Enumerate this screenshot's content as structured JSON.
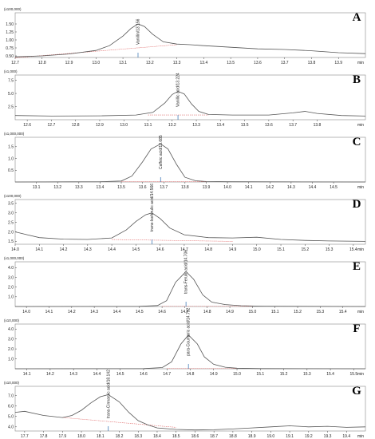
{
  "figure": {
    "unit": "min",
    "colors": {
      "trace": "#555555",
      "baseline": "#e06a6a",
      "frame": "#888888",
      "peak_marker": "#2b6cb0"
    }
  },
  "chart_data": [
    {
      "type": "line",
      "letter": "A",
      "scale": "(x100,000)",
      "xlim": [
        12.7,
        14.0
      ],
      "xticks": [
        12.7,
        12.8,
        12.9,
        13.0,
        13.1,
        13.2,
        13.3,
        13.4,
        13.5,
        13.6,
        13.7,
        13.8,
        13.9
      ],
      "ylim": [
        0.45,
        1.85
      ],
      "yticks": [
        0.5,
        0.75,
        1.0,
        1.25,
        1.5
      ],
      "peak_label": "Vanillin/13.156",
      "peak_x": 13.156,
      "trace": {
        "x": [
          12.7,
          12.8,
          12.9,
          13.0,
          13.05,
          13.1,
          13.13,
          13.156,
          13.18,
          13.21,
          13.25,
          13.3,
          13.35,
          13.4,
          13.5,
          13.6,
          13.7,
          13.8,
          13.9,
          14.0
        ],
        "y": [
          0.47,
          0.5,
          0.56,
          0.67,
          0.82,
          1.12,
          1.36,
          1.5,
          1.42,
          1.18,
          0.94,
          0.87,
          0.85,
          0.82,
          0.77,
          0.72,
          0.7,
          0.66,
          0.6,
          0.57
        ]
      },
      "baseline": {
        "x": [
          12.7,
          13.3
        ],
        "y": [
          0.44,
          0.85
        ]
      }
    },
    {
      "type": "line",
      "letter": "B",
      "scale": "(x1,000)",
      "xlim": [
        12.55,
        14.0
      ],
      "xticks": [
        12.6,
        12.7,
        12.8,
        12.9,
        13.0,
        13.1,
        13.2,
        13.3,
        13.4,
        13.5,
        13.6,
        13.7,
        13.8
      ],
      "ylim": [
        0,
        8.5
      ],
      "yticks": [
        2.5,
        5.0,
        7.5
      ],
      "peak_label": "Vanillic acid/13.224",
      "peak_x": 13.224,
      "trace": {
        "x": [
          12.55,
          12.7,
          12.9,
          13.05,
          13.12,
          13.17,
          13.2,
          13.224,
          13.25,
          13.28,
          13.31,
          13.35,
          13.45,
          13.6,
          13.7,
          13.75,
          13.8,
          13.9,
          14.0
        ],
        "y": [
          0.8,
          0.7,
          0.75,
          0.9,
          1.4,
          3.2,
          4.8,
          5.4,
          4.9,
          3.0,
          1.6,
          1.0,
          0.9,
          0.9,
          1.3,
          1.6,
          1.2,
          0.8,
          0.7
        ]
      },
      "baseline": {
        "x": [
          13.1,
          13.35
        ],
        "y": [
          0.9,
          0.9
        ]
      }
    },
    {
      "type": "line",
      "letter": "C",
      "scale": "(x1,000,000)",
      "xlim": [
        13.0,
        14.65
      ],
      "xticks": [
        13.1,
        13.2,
        13.3,
        13.4,
        13.5,
        13.6,
        13.7,
        13.8,
        13.9,
        14.0,
        14.1,
        14.2,
        14.3,
        14.4,
        14.5
      ],
      "ylim": [
        0,
        1.9
      ],
      "yticks": [
        0.5,
        1.0,
        1.5
      ],
      "peak_label": "Caffeic acid/13.685",
      "peak_x": 13.685,
      "trace": {
        "x": [
          13.0,
          13.4,
          13.5,
          13.55,
          13.6,
          13.64,
          13.685,
          13.72,
          13.76,
          13.8,
          13.85,
          13.9,
          14.0,
          14.65
        ],
        "y": [
          0.0,
          0.01,
          0.04,
          0.25,
          0.85,
          1.4,
          1.62,
          1.4,
          0.75,
          0.2,
          0.05,
          0.02,
          0.01,
          0.0
        ]
      },
      "baseline": {
        "x": [
          13.5,
          13.9
        ],
        "y": [
          0.01,
          0.01
        ]
      }
    },
    {
      "type": "line",
      "letter": "D",
      "scale": "(x100,000)",
      "xlim": [
        14.0,
        15.45
      ],
      "xticks": [
        14.0,
        14.1,
        14.2,
        14.3,
        14.4,
        14.5,
        14.6,
        14.7,
        14.8,
        14.9,
        15.0,
        15.1,
        15.2,
        15.3,
        15.4
      ],
      "ylim": [
        1.35,
        3.7
      ],
      "yticks": [
        1.5,
        2.0,
        2.5,
        3.0,
        3.5
      ],
      "peak_label": "trans-Isoferulic acid/14.566",
      "peak_x": 14.566,
      "trace": {
        "x": [
          14.0,
          14.05,
          14.1,
          14.2,
          14.3,
          14.4,
          14.46,
          14.5,
          14.54,
          14.566,
          14.6,
          14.64,
          14.7,
          14.8,
          14.9,
          15.0,
          15.1,
          15.2,
          15.3,
          15.45
        ],
        "y": [
          2.0,
          1.85,
          1.7,
          1.62,
          1.6,
          1.68,
          2.1,
          2.55,
          2.9,
          3.0,
          2.7,
          2.2,
          1.85,
          1.7,
          1.68,
          1.72,
          1.6,
          1.55,
          1.52,
          1.5
        ]
      },
      "baseline": {
        "x": [
          14.4,
          14.9
        ],
        "y": [
          1.6,
          1.5
        ]
      }
    },
    {
      "type": "line",
      "letter": "E",
      "scale": "(x1,000,000)",
      "xlim": [
        13.95,
        15.5
      ],
      "xticks": [
        14.0,
        14.1,
        14.2,
        14.3,
        14.4,
        14.5,
        14.6,
        14.7,
        14.8,
        14.9,
        15.0,
        15.1,
        15.2,
        15.3,
        15.4
      ],
      "ylim": [
        0,
        4.6
      ],
      "yticks": [
        1.0,
        2.0,
        3.0,
        4.0
      ],
      "peak_label": "trans-Ferulic acid/14.706",
      "peak_x": 14.706,
      "trace": {
        "x": [
          13.95,
          14.5,
          14.58,
          14.62,
          14.66,
          14.706,
          14.74,
          14.78,
          14.82,
          14.88,
          14.95,
          15.05,
          15.5
        ],
        "y": [
          0.0,
          0.02,
          0.1,
          0.6,
          2.5,
          3.6,
          2.8,
          1.2,
          0.45,
          0.2,
          0.08,
          0.03,
          0.0
        ]
      },
      "baseline": {
        "x": [
          14.6,
          15.0
        ],
        "y": [
          0.02,
          0.02
        ]
      }
    },
    {
      "type": "line",
      "letter": "F",
      "scale": "(x10,000)",
      "xlim": [
        14.05,
        15.55
      ],
      "xticks": [
        14.1,
        14.2,
        14.3,
        14.4,
        14.5,
        14.6,
        14.7,
        14.8,
        14.9,
        15.0,
        15.1,
        15.2,
        15.3,
        15.4,
        15.5
      ],
      "ylim": [
        0,
        4.5
      ],
      "yticks": [
        1.0,
        2.0,
        3.0,
        4.0
      ],
      "peak_label": "para-Coumaric acid/14.792",
      "peak_x": 14.792,
      "trace": {
        "x": [
          14.05,
          14.6,
          14.68,
          14.72,
          14.76,
          14.792,
          14.83,
          14.86,
          14.9,
          14.95,
          15.0,
          15.1,
          15.55
        ],
        "y": [
          0.0,
          0.02,
          0.12,
          0.7,
          2.5,
          3.4,
          2.5,
          1.2,
          0.45,
          0.15,
          0.06,
          0.02,
          0.0
        ]
      },
      "baseline": {
        "x": [
          14.7,
          15.0
        ],
        "y": [
          0.02,
          0.02
        ]
      }
    },
    {
      "type": "line",
      "letter": "G",
      "scale": "(x10,000)",
      "xlim": [
        17.65,
        19.5
      ],
      "xticks": [
        17.7,
        17.8,
        17.9,
        18.0,
        18.1,
        18.2,
        18.3,
        18.4,
        18.5,
        18.6,
        18.7,
        18.8,
        18.9,
        19.0,
        19.1,
        19.2,
        19.3,
        19.4
      ],
      "ylim": [
        3.6,
        7.9
      ],
      "yticks": [
        4.0,
        5.0,
        6.0,
        7.0
      ],
      "peak_label": "trans-Cinnamic acid/18.142",
      "peak_x": 18.142,
      "trace": {
        "x": [
          17.65,
          17.7,
          17.8,
          17.9,
          17.95,
          18.0,
          18.05,
          18.1,
          18.142,
          18.2,
          18.25,
          18.3,
          18.35,
          18.4,
          18.5,
          18.6,
          18.7,
          18.8,
          18.9,
          19.0,
          19.1,
          19.2,
          19.3,
          19.4,
          19.5
        ],
        "y": [
          5.4,
          5.5,
          5.1,
          4.9,
          5.1,
          5.6,
          6.3,
          6.9,
          7.1,
          6.4,
          5.4,
          4.6,
          4.2,
          3.9,
          3.75,
          3.7,
          3.72,
          3.8,
          3.9,
          4.0,
          4.1,
          4.0,
          4.05,
          3.95,
          4.0
        ]
      },
      "baseline": {
        "x": [
          17.9,
          18.5
        ],
        "y": [
          4.9,
          3.95
        ]
      }
    }
  ]
}
